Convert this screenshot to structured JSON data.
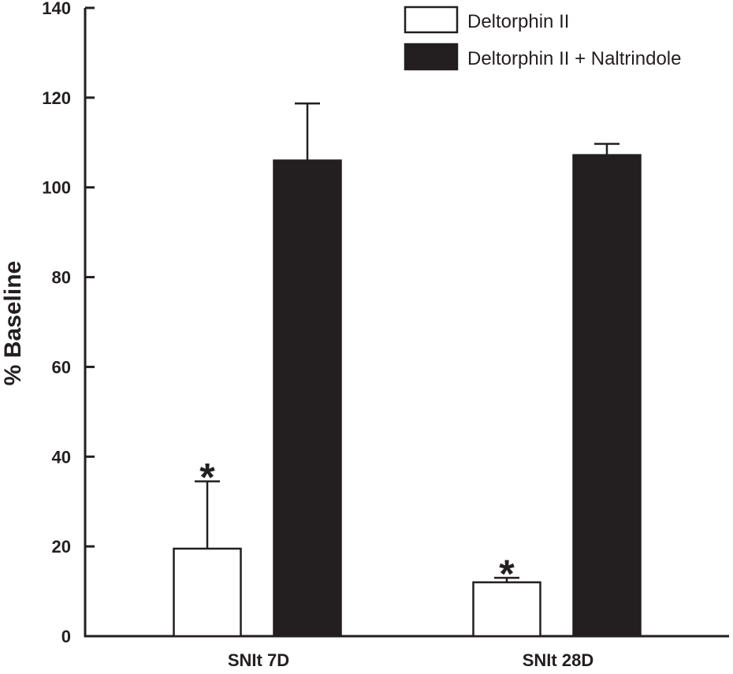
{
  "chart_data": {
    "type": "bar",
    "title": "",
    "xlabel": "",
    "ylabel": "% Baseline",
    "ylim": [
      0,
      140
    ],
    "yticks": [
      0,
      20,
      40,
      60,
      80,
      100,
      120,
      140
    ],
    "categories": [
      "SNIt 7D",
      "SNIt 28D"
    ],
    "series": [
      {
        "name": "Deltorphin II",
        "fill": "#ffffff",
        "values": [
          19.5,
          12
        ],
        "errors": [
          15,
          1
        ],
        "annotations": [
          "*",
          "*"
        ]
      },
      {
        "name": "Deltorphin II + Naltrindole",
        "fill": "#231f20",
        "values": [
          106,
          107.2
        ],
        "errors": [
          12.7,
          2.5
        ],
        "annotations": [
          "",
          ""
        ]
      }
    ],
    "legend_position": "top-right",
    "colors": {
      "ink": "#231f20",
      "background": "#ffffff"
    }
  }
}
